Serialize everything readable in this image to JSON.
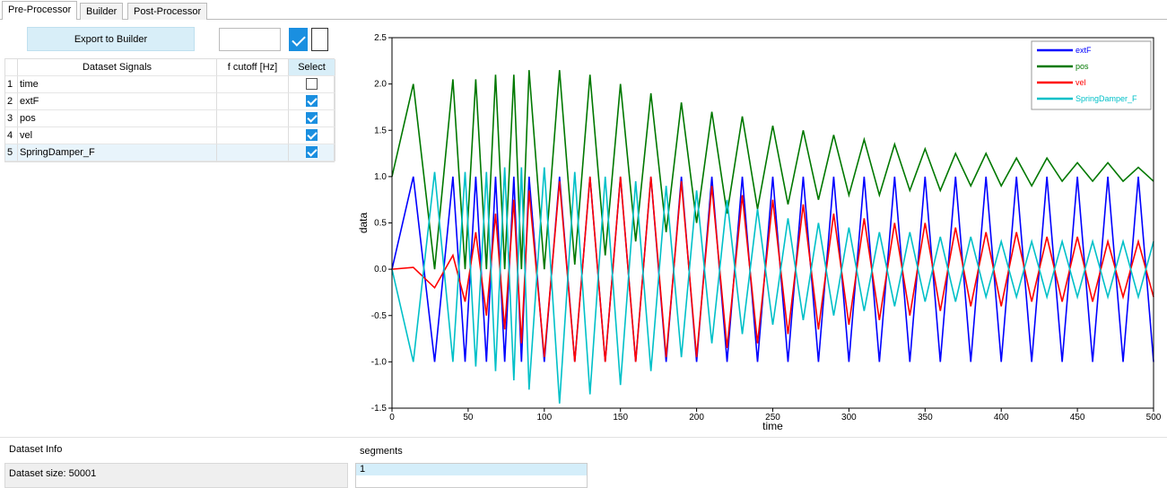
{
  "ui": {
    "tabs": [
      "Pre-Processor",
      "Builder",
      "Post-Processor"
    ],
    "export_button": "Export to Builder",
    "toggles": [
      true,
      false
    ],
    "table": {
      "headers": [
        "Dataset Signals",
        "f cutoff [Hz]",
        "Select"
      ],
      "rows": [
        {
          "index": 1,
          "signal": "time",
          "selected": false
        },
        {
          "index": 2,
          "signal": "extF",
          "selected": true
        },
        {
          "index": 3,
          "signal": "pos",
          "selected": true
        },
        {
          "index": 4,
          "signal": "vel",
          "selected": true
        },
        {
          "index": 5,
          "signal": "SpringDamper_F",
          "selected": true
        }
      ]
    },
    "dataset_info_label": "Dataset Info",
    "dataset_size": "Dataset size: 50001",
    "segments_label": "segments",
    "segments": [
      "1"
    ]
  },
  "chart_data": {
    "type": "line",
    "x_label": "time",
    "y_label": "data",
    "xlim": [
      0,
      500
    ],
    "ylim": [
      -1.5,
      2.5
    ],
    "xticks": [
      0,
      50,
      100,
      150,
      200,
      250,
      300,
      350,
      400,
      450,
      500
    ],
    "yticks": [
      -1.5,
      {
        "value": -1,
        "label": "-1.0"
      },
      -0.5,
      {
        "value": 0,
        "label": "0.0"
      },
      0.5,
      {
        "value": 1,
        "label": "1.0"
      },
      1.5,
      {
        "value": 2,
        "label": "2.0"
      },
      2.5
    ],
    "grid": false,
    "legend": "top-right",
    "x": [
      0,
      14,
      28,
      40,
      48,
      55,
      62,
      68,
      74,
      80,
      85,
      90,
      100,
      110,
      120,
      130,
      140,
      150,
      160,
      170,
      180,
      190,
      200,
      210,
      220,
      230,
      240,
      250,
      260,
      270,
      280,
      290,
      300,
      310,
      320,
      330,
      340,
      350,
      360,
      370,
      380,
      390,
      400,
      410,
      420,
      430,
      440,
      450,
      460,
      470,
      480,
      490,
      500
    ],
    "series": [
      {
        "name": "extF",
        "color": "#0000ff",
        "values": [
          0,
          1,
          -1,
          1,
          -1,
          1,
          -1,
          1,
          -1,
          1,
          -1,
          1,
          -1,
          1,
          -1,
          1,
          -1,
          1,
          -1,
          1,
          -1,
          1,
          -1,
          1,
          -1,
          1,
          -1,
          1,
          -1,
          1,
          -1,
          1,
          -1,
          1,
          -1,
          1,
          -1,
          1,
          -1,
          1,
          -1,
          1,
          -1,
          1,
          -1,
          1,
          -1,
          1,
          -1,
          1,
          -1,
          1,
          -1
        ]
      },
      {
        "name": "pos",
        "color": "#007800",
        "values": [
          1,
          2.0,
          0.0,
          2.05,
          0.0,
          2.05,
          0.0,
          2.1,
          0.0,
          2.1,
          0.0,
          2.15,
          0.0,
          2.15,
          0.05,
          2.1,
          0.15,
          2.0,
          0.3,
          1.9,
          0.4,
          1.8,
          0.5,
          1.7,
          0.6,
          1.65,
          0.65,
          1.55,
          0.7,
          1.5,
          0.75,
          1.45,
          0.8,
          1.4,
          0.8,
          1.35,
          0.85,
          1.3,
          0.85,
          1.25,
          0.9,
          1.25,
          0.9,
          1.2,
          0.9,
          1.2,
          0.95,
          1.15,
          0.95,
          1.15,
          0.95,
          1.1,
          0.95
        ]
      },
      {
        "name": "vel",
        "color": "#ff0000",
        "values": [
          0,
          0.02,
          -0.2,
          0.15,
          -0.35,
          0.4,
          -0.5,
          0.6,
          -0.65,
          0.75,
          -0.8,
          0.85,
          -0.95,
          0.95,
          -1.0,
          1.0,
          -1.0,
          1.0,
          -1.0,
          1.0,
          -0.95,
          0.95,
          -0.95,
          0.9,
          -0.85,
          0.8,
          -0.8,
          0.75,
          -0.7,
          0.7,
          -0.65,
          0.6,
          -0.6,
          0.55,
          -0.55,
          0.5,
          -0.5,
          0.5,
          -0.45,
          0.45,
          -0.4,
          0.4,
          -0.4,
          0.4,
          -0.35,
          0.35,
          -0.35,
          0.35,
          -0.35,
          0.3,
          -0.3,
          0.3,
          -0.3
        ]
      },
      {
        "name": "SpringDamper_F",
        "color": "#00c0c8",
        "values": [
          0,
          -1.0,
          1.05,
          -1.0,
          1.05,
          -1.05,
          1.05,
          -1.1,
          1.1,
          -1.2,
          1.1,
          -1.3,
          1.1,
          -1.45,
          1.05,
          -1.35,
          1.0,
          -1.25,
          0.95,
          -1.1,
          0.9,
          -0.95,
          0.85,
          -0.8,
          0.75,
          -0.7,
          0.65,
          -0.6,
          0.55,
          -0.55,
          0.5,
          -0.5,
          0.45,
          -0.45,
          0.4,
          -0.4,
          0.4,
          -0.35,
          0.35,
          -0.35,
          0.35,
          -0.3,
          0.3,
          -0.3,
          0.3,
          -0.3,
          0.3,
          -0.3,
          0.3,
          -0.3,
          0.3,
          -0.3,
          0.3
        ]
      }
    ]
  }
}
